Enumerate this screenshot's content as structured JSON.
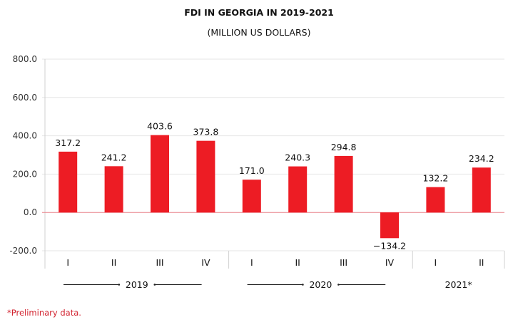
{
  "chart_data": {
    "type": "bar",
    "title": "FDI IN GEORGIA IN 2019-2021",
    "subtitle": "(MILLION US DOLLARS)",
    "xlabel": "",
    "ylabel": "",
    "ylim": [
      -200,
      800
    ],
    "yticks": [
      800,
      600,
      400,
      200,
      0,
      -200
    ],
    "ytick_labels": [
      "800.0",
      "600.0",
      "400.0",
      "200.0",
      "0.0",
      "-200.0"
    ],
    "grid": true,
    "categories": [
      "I",
      "II",
      "III",
      "IV",
      "I",
      "II",
      "III",
      "IV",
      "I",
      "II"
    ],
    "values": [
      317.2,
      241.2,
      403.6,
      373.8,
      171.0,
      240.3,
      294.8,
      -134.2,
      132.2,
      234.2
    ],
    "data_labels": [
      "317.2",
      "241.2",
      "403.6",
      "373.8",
      "171.0",
      "240.3",
      "294.8",
      "−134.2",
      "132.2",
      "234.2"
    ],
    "groups": [
      {
        "label": "2019",
        "count": 4,
        "arrows": true
      },
      {
        "label": "2020",
        "count": 4,
        "arrows": true
      },
      {
        "label": "2021*",
        "count": 2,
        "arrows": false
      }
    ],
    "colors": {
      "bar": "#ed1c24",
      "zero_line": "#e8828a",
      "grid": "#e6e6e6",
      "axis": "#d0d0d0",
      "footnote": "#d2232f"
    }
  },
  "footnote": "*Preliminary data."
}
